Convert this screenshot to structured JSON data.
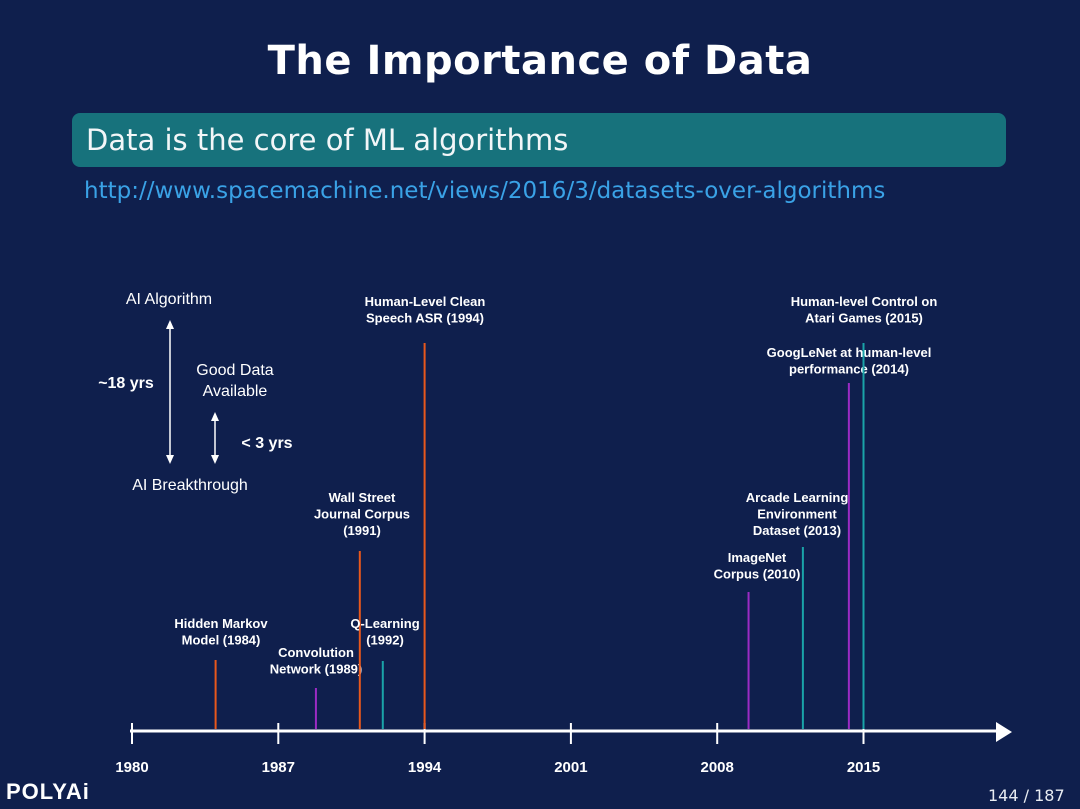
{
  "slide": {
    "title": "The Importance of Data",
    "block_text": "Data is the core of ML algorithms",
    "url": "http://www.spacemachine.net/views/2016/3/datasets-over-algorithms",
    "logo": "POLYAi",
    "page_number": "144 / 187"
  },
  "legend": {
    "top_label": "AI Algorithm",
    "bottom_label": "AI Breakthrough",
    "long_span": "~18 yrs",
    "middle_label": [
      "Good Data",
      "Available"
    ],
    "short_span": "< 3 yrs"
  },
  "axis": {
    "ticks": [
      "1980",
      "1987",
      "1994",
      "2001",
      "2008",
      "2015"
    ]
  },
  "events": [
    {
      "lines": [
        "Hidden Markov",
        "Model (1984)"
      ],
      "year": 1984.0,
      "color": "#e8581c"
    },
    {
      "lines": [
        "Convolution",
        "Network (1989)"
      ],
      "year": 1988.8,
      "color": "#9b2bc4"
    },
    {
      "lines": [
        "Wall Street",
        "Journal Corpus",
        "(1991)"
      ],
      "year": 1990.9,
      "color": "#e8581c"
    },
    {
      "lines": [
        "Q-Learning",
        "(1992)"
      ],
      "year": 1992.0,
      "color": "#1aa3a8"
    },
    {
      "lines": [
        "Human-Level Clean",
        "Speech ASR (1994)"
      ],
      "year": 1994.0,
      "color": "#e8581c"
    },
    {
      "lines": [
        "ImageNet",
        "Corpus (2010)"
      ],
      "year": 2009.5,
      "color": "#9b2bc4"
    },
    {
      "lines": [
        "Arcade Learning",
        "Environment",
        "Dataset (2013)"
      ],
      "year": 2012.1,
      "color": "#1aa3a8"
    },
    {
      "lines": [
        "GoogLeNet at human-level",
        "performance (2014)"
      ],
      "year": 2014.3,
      "color": "#9b2bc4"
    },
    {
      "lines": [
        "Human-level Control on",
        "Atari Games (2015)"
      ],
      "year": 2015.0,
      "color": "#1aa3a8"
    }
  ]
}
